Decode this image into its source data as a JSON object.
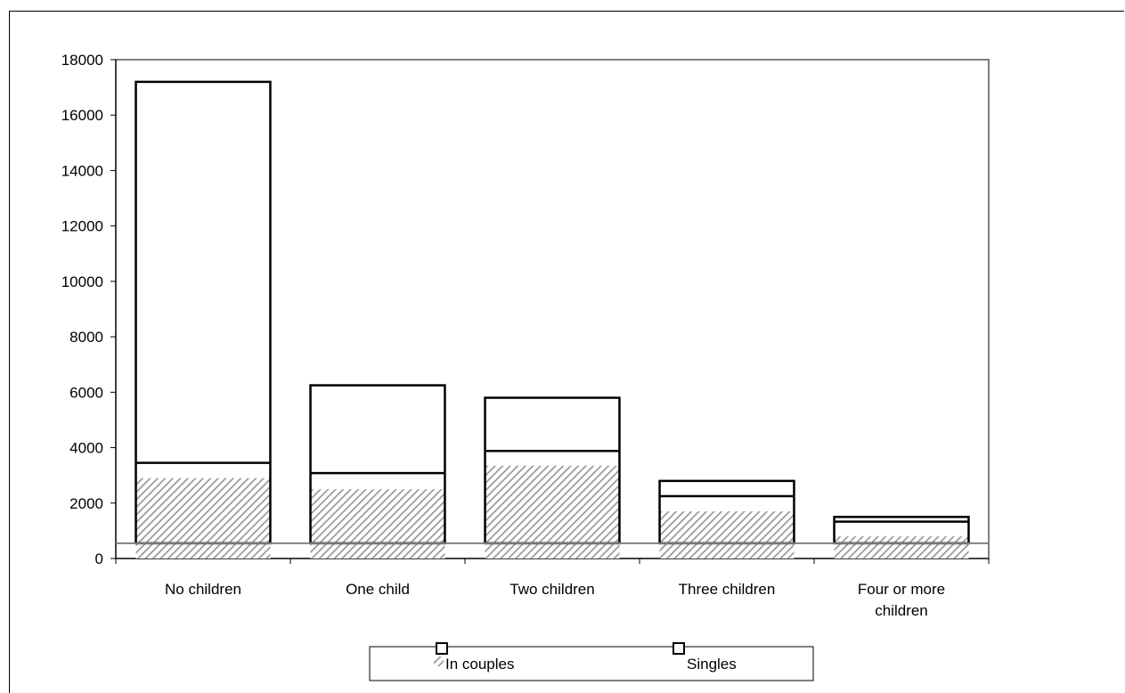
{
  "chart_data": {
    "type": "bar",
    "stacked": true,
    "categories": [
      "No children",
      "One child",
      "Two children",
      "Three children",
      "Four or more children"
    ],
    "category_label_lines": [
      [
        "No children"
      ],
      [
        "One child"
      ],
      [
        "Two children"
      ],
      [
        "Three children"
      ],
      [
        "Four or more",
        "children"
      ]
    ],
    "series": [
      {
        "name": "In couples",
        "values": [
          2900,
          2500,
          3350,
          1700,
          800
        ],
        "pattern": "diagonal-hatch",
        "color": "#999999"
      },
      {
        "name": "Singles",
        "values": [
          14300,
          3750,
          2450,
          1100,
          700
        ],
        "pattern": "none",
        "color": "#ffffff"
      }
    ],
    "overlay_lines": [
      3450,
      3080,
      3880,
      2250,
      1330
    ],
    "reference_line": 550,
    "title": "",
    "xlabel": "",
    "ylabel": "",
    "ylim": [
      0,
      18000
    ],
    "yticks": [
      0,
      2000,
      4000,
      6000,
      8000,
      10000,
      12000,
      14000,
      16000,
      18000
    ],
    "grid": false,
    "legend_position": "bottom",
    "plot_border_color": "#808080",
    "bar_outline_color": "#000000"
  }
}
